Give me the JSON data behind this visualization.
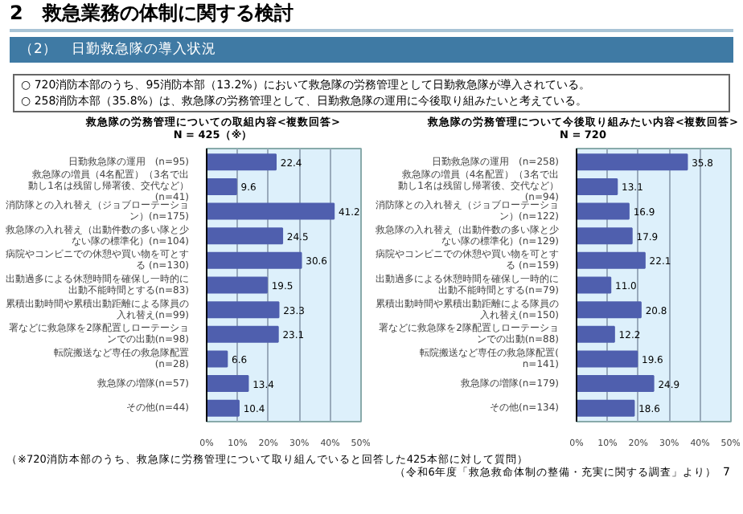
{
  "chart_data": [
    {
      "type": "bar",
      "orientation": "horizontal",
      "title": "救急隊の労務管理についての取組内容<複数回答>",
      "subtitle": "N = 425（※）",
      "annotations": [
        "2　救急業務の体制に関する検討",
        "（2）　日勤救急隊の導入状況",
        "○ 720消防本部のうち、95消防本部（13.2%）において救急隊の労務管理として日勤救急隊が導入されている。",
        "○ 258消防本部（35.8%）は、救急隊の労務管理として、日勤救急隊の運用に今後取り組みたいと考えている。",
        "（※720消防本部のうち、救急隊に労務管理について取り組んでいると回答した425本部に対して質問）"
      ],
      "categories": [
        "日勤救急隊の運用　(n=95)",
        "救急隊の増員（4名配置）（3名で出動し1名は残留し帰署後、交代など）(n=41)",
        "消防隊との入れ替え（ジョブローテーション）(n=175)",
        "救急隊の入れ替え（出動件数の多い隊と少ない隊の標準化）(n=104)",
        "病院やコンビニでの休憩や買い物を可とする (n=130)",
        "出動過多による休憩時間を確保し一時的に出動不能時間とする(n=83)",
        "累積出動時間や累積出動距離による隊員の入れ替え(n=99)",
        "署などに救急隊を2隊配置しローテーションでの出動(n=98)",
        "転院搬送など専任の救急隊配置(n=28)",
        "救急隊の増隊(n=57)",
        "その他(n=44)"
      ],
      "values": [
        22.4,
        9.6,
        41.2,
        24.5,
        30.6,
        19.5,
        23.3,
        23.1,
        6.6,
        13.4,
        10.4
      ],
      "value_labels": [
        "22.4",
        "9.6",
        "41.2",
        "24.5",
        "30.6",
        "19.5",
        "23.3",
        "23.1",
        "6.6",
        "13.4",
        "10.4"
      ],
      "color": "#4f5fae",
      "grid": "x",
      "xlim": [
        0,
        50
      ],
      "xticks": [
        {
          "value": 0,
          "label": "0%"
        },
        {
          "value": 10,
          "label": "10%"
        },
        {
          "value": 20,
          "label": "20%"
        },
        {
          "value": 30,
          "label": "30%"
        },
        {
          "value": 40,
          "label": "40%"
        },
        {
          "value": 50,
          "label": "50%"
        }
      ]
    },
    {
      "type": "bar",
      "orientation": "horizontal",
      "title": "救急隊の労務管理について今後取り組みたい内容<複数回答>",
      "subtitle": "N = 720",
      "annotations": [
        "（令和6年度「救急救命体制の整備・充実に関する調査」より）",
        "7"
      ],
      "categories": [
        "日勤救急隊の運用　(n=258)",
        "救急隊の増員（4名配置）（3名で出動し1名は残留し帰署後、交代など）(n=94)",
        "消防隊との入れ替え（ジョブローテーション）(n=122)",
        "救急隊の入れ替え（出動件数の多い隊と少ない隊の標準化）(n=129)",
        "病院やコンビニでの休憩や買い物を可とする (n=159)",
        "出動過多による休憩時間を確保し一時的に出動不能時間とする(n=79)",
        "累積出動時間や累積出動距離による隊員の入れ替え(n=150)",
        "署などに救急隊を2隊配置しローテーションでの出動(n=88)",
        "転院搬送など専任の救急隊配置(n=141)",
        "救急隊の増隊(n=179)",
        "その他(n=134)"
      ],
      "values": [
        35.8,
        13.1,
        16.9,
        17.9,
        22.1,
        11.0,
        20.8,
        12.2,
        19.6,
        24.9,
        18.6
      ],
      "value_labels": [
        "35.8",
        "13.1",
        "16.9",
        "17.9",
        "22.1",
        "11.0",
        "20.8",
        "12.2",
        "19.6",
        "24.9",
        "18.6"
      ],
      "color": "#4f5fae",
      "grid": "x",
      "xlim": [
        0,
        50
      ],
      "xticks": [
        {
          "value": 0,
          "label": "0%"
        },
        {
          "value": 10,
          "label": "10%"
        },
        {
          "value": 20,
          "label": "20%"
        },
        {
          "value": 30,
          "label": "30%"
        },
        {
          "value": 40,
          "label": "40%"
        },
        {
          "value": 50,
          "label": "50%"
        }
      ]
    }
  ]
}
